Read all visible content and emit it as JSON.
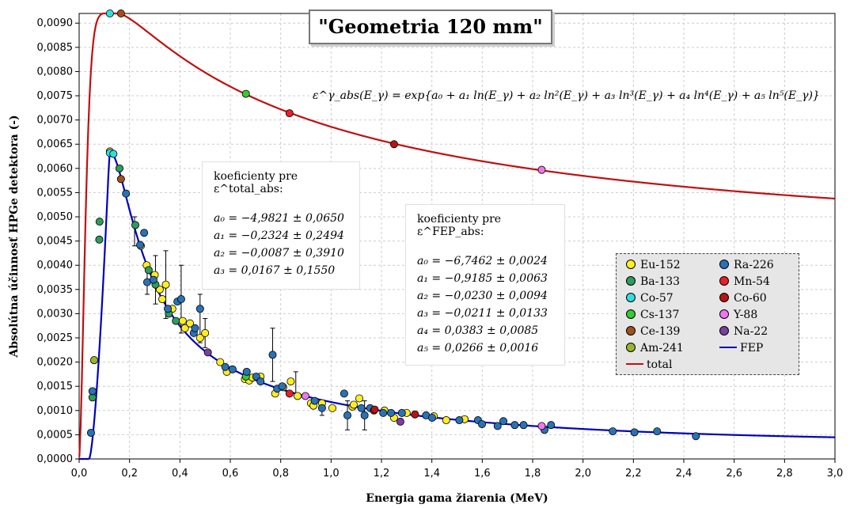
{
  "chart_data": {
    "type": "scatter",
    "title": "\"Geometria 120 mm\"",
    "xlabel": "Energia gama žiarenia (MeV)",
    "ylabel": "Absolútna účinnosť HPGe detektora (-)",
    "xlim": [
      0,
      3.0
    ],
    "ylim": [
      0,
      0.0092
    ],
    "x_ticks": [
      "0,0",
      "0,2",
      "0,4",
      "0,6",
      "0,8",
      "1,0",
      "1,2",
      "1,4",
      "1,6",
      "1,8",
      "2,0",
      "2,2",
      "2,4",
      "2,6",
      "2,8",
      "3,0"
    ],
    "y_ticks": [
      "0,0000",
      "0,0005",
      "0,0010",
      "0,0015",
      "0,0020",
      "0,0025",
      "0,0030",
      "0,0035",
      "0,0040",
      "0,0045",
      "0,0050",
      "0,0055",
      "0,0060",
      "0,0065",
      "0,0070",
      "0,0075",
      "0,0080",
      "0,0085",
      "0,0090"
    ],
    "grid": true,
    "legend_position": "right",
    "series": [
      {
        "name": "Eu-152",
        "color": "#ffee22",
        "points": [
          [
            0.122,
            0.00635
          ],
          [
            0.245,
            0.0044
          ],
          [
            0.268,
            0.004
          ],
          [
            0.3,
            0.0038
          ],
          [
            0.32,
            0.0035
          ],
          [
            0.33,
            0.0033
          ],
          [
            0.344,
            0.0036
          ],
          [
            0.37,
            0.0031
          ],
          [
            0.411,
            0.00285
          ],
          [
            0.42,
            0.0027
          ],
          [
            0.44,
            0.0028
          ],
          [
            0.48,
            0.0025
          ],
          [
            0.5,
            0.0026
          ],
          [
            0.56,
            0.002
          ],
          [
            0.586,
            0.0018
          ],
          [
            0.658,
            0.00165
          ],
          [
            0.675,
            0.00162
          ],
          [
            0.688,
            0.00168
          ],
          [
            0.72,
            0.0017
          ],
          [
            0.778,
            0.00135
          ],
          [
            0.81,
            0.00148
          ],
          [
            0.84,
            0.0016
          ],
          [
            0.867,
            0.0013
          ],
          [
            0.92,
            0.00115
          ],
          [
            0.93,
            0.0011
          ],
          [
            0.964,
            0.00115
          ],
          [
            1.005,
            0.00105
          ],
          [
            1.085,
            0.00108
          ],
          [
            1.09,
            0.00112
          ],
          [
            1.112,
            0.00125
          ],
          [
            1.212,
            0.001
          ],
          [
            1.25,
            0.00085
          ],
          [
            1.3,
            0.00095
          ],
          [
            1.408,
            0.00088
          ],
          [
            1.457,
            0.0008
          ],
          [
            1.53,
            0.00082
          ]
        ]
      },
      {
        "name": "Ba-133",
        "color": "#2e9c5e",
        "points": [
          [
            0.053,
            0.00127
          ],
          [
            0.08,
            0.00453
          ],
          [
            0.081,
            0.0049
          ],
          [
            0.16,
            0.006
          ],
          [
            0.223,
            0.00483
          ],
          [
            0.276,
            0.0039
          ],
          [
            0.303,
            0.0036
          ],
          [
            0.356,
            0.003
          ],
          [
            0.384,
            0.00285
          ]
        ]
      },
      {
        "name": "Co-57",
        "color": "#33dddd",
        "points": [
          [
            0.122,
            0.00632
          ],
          [
            0.136,
            0.0063
          ]
        ]
      },
      {
        "name": "Cs-137",
        "color": "#33cc33",
        "points": [
          [
            0.662,
            0.0017
          ]
        ]
      },
      {
        "name": "Ce-139",
        "color": "#a0501e",
        "points": [
          [
            0.166,
            0.00578
          ]
        ]
      },
      {
        "name": "Am-241",
        "color": "#9ab52a",
        "points": [
          [
            0.0595,
            0.00204
          ]
        ]
      },
      {
        "name": "Ra-226",
        "color": "#2a72b5",
        "points": [
          [
            0.047,
            0.00054
          ],
          [
            0.053,
            0.0014
          ],
          [
            0.186,
            0.00548
          ],
          [
            0.242,
            0.00442
          ],
          [
            0.258,
            0.00467
          ],
          [
            0.27,
            0.00365
          ],
          [
            0.295,
            0.0037
          ],
          [
            0.352,
            0.0031
          ],
          [
            0.39,
            0.00325
          ],
          [
            0.405,
            0.0033
          ],
          [
            0.455,
            0.0026
          ],
          [
            0.46,
            0.0027
          ],
          [
            0.48,
            0.0031
          ],
          [
            0.58,
            0.0019
          ],
          [
            0.609,
            0.00185
          ],
          [
            0.665,
            0.0018
          ],
          [
            0.703,
            0.0017
          ],
          [
            0.72,
            0.0016
          ],
          [
            0.768,
            0.00215
          ],
          [
            0.786,
            0.00145
          ],
          [
            0.806,
            0.0015
          ],
          [
            0.935,
            0.0012
          ],
          [
            0.964,
            0.00105
          ],
          [
            1.052,
            0.00135
          ],
          [
            1.065,
            0.0009
          ],
          [
            1.12,
            0.00105
          ],
          [
            1.133,
            0.0009
          ],
          [
            1.155,
            0.00105
          ],
          [
            1.207,
            0.00095
          ],
          [
            1.238,
            0.00095
          ],
          [
            1.281,
            0.00095
          ],
          [
            1.377,
            0.0009
          ],
          [
            1.401,
            0.00085
          ],
          [
            1.509,
            0.0008
          ],
          [
            1.583,
            0.0008
          ],
          [
            1.599,
            0.00072
          ],
          [
            1.661,
            0.00068
          ],
          [
            1.684,
            0.00078
          ],
          [
            1.729,
            0.0007
          ],
          [
            1.764,
            0.0007
          ],
          [
            1.847,
            0.0006
          ],
          [
            1.873,
            0.0007
          ],
          [
            2.118,
            0.00057
          ],
          [
            2.204,
            0.00055
          ],
          [
            2.294,
            0.00057
          ],
          [
            2.448,
            0.00047
          ]
        ]
      },
      {
        "name": "Mn-54",
        "color": "#e8202a",
        "points": [
          [
            0.835,
            0.00135
          ],
          [
            1.17,
            0.001
          ]
        ]
      },
      {
        "name": "Co-60",
        "color": "#b81414",
        "points": [
          [
            1.173,
            0.00102
          ],
          [
            1.333,
            0.00092
          ]
        ]
      },
      {
        "name": "Y-88",
        "color": "#ee77ee",
        "points": [
          [
            0.898,
            0.0013
          ],
          [
            1.836,
            0.00068
          ]
        ]
      },
      {
        "name": "Na-22",
        "color": "#7a3fa0",
        "points": [
          [
            0.511,
            0.0022
          ],
          [
            1.275,
            0.00077
          ]
        ]
      }
    ],
    "total_markers": [
      {
        "x": 0.122,
        "y": 0.0092,
        "color": "#33dddd"
      },
      {
        "x": 0.166,
        "y": 0.0092,
        "color": "#a0501e"
      },
      {
        "x": 0.662,
        "y": 0.00754,
        "color": "#33cc33"
      },
      {
        "x": 0.835,
        "y": 0.00714,
        "color": "#e8202a"
      },
      {
        "x": 1.25,
        "y": 0.0065,
        "color": "#b81414"
      },
      {
        "x": 1.836,
        "y": 0.00597,
        "color": "#ee77ee"
      }
    ],
    "error_bars": [
      {
        "x": 0.303,
        "y": 0.0036,
        "lo": 0.0032,
        "hi": 0.0042
      },
      {
        "x": 0.344,
        "y": 0.0036,
        "lo": 0.0029,
        "hi": 0.0043
      },
      {
        "x": 0.405,
        "y": 0.0033,
        "lo": 0.0026,
        "hi": 0.004
      },
      {
        "x": 0.48,
        "y": 0.0031,
        "lo": 0.0024,
        "hi": 0.0034
      },
      {
        "x": 0.768,
        "y": 0.00215,
        "lo": 0.0016,
        "hi": 0.0027
      },
      {
        "x": 0.86,
        "y": 0.0016,
        "lo": 0.0013,
        "hi": 0.0018
      },
      {
        "x": 1.065,
        "y": 0.0009,
        "lo": 0.0006,
        "hi": 0.0012
      },
      {
        "x": 1.133,
        "y": 0.0009,
        "lo": 0.0006,
        "hi": 0.0012
      },
      {
        "x": 0.964,
        "y": 0.00105,
        "lo": 0.0009,
        "hi": 0.0012
      },
      {
        "x": 0.5,
        "y": 0.0026,
        "lo": 0.0023,
        "hi": 0.0029
      },
      {
        "x": 0.27,
        "y": 0.00365,
        "lo": 0.0034,
        "hi": 0.0039
      },
      {
        "x": 0.22,
        "y": 0.00483,
        "lo": 0.0044,
        "hi": 0.005
      }
    ],
    "curves": [
      {
        "name": "FEP",
        "color": "#0000bb"
      },
      {
        "name": "total",
        "color": "#c01010"
      }
    ],
    "formula": "ε^γ_abs(E_γ) = exp{a₀ + a₁ ln(E_γ) + a₂ ln²(E_γ) + a₃ ln³(E_γ) + a₄ ln⁴(E_γ) + a₅ ln⁵(E_γ)}",
    "coef_total": {
      "head": "koeficienty pre ε^total_abs:",
      "lines": [
        "a₀ = −4,9821 ± 0,0650",
        "a₁ = −0,2324 ± 0,2494",
        "a₂ = −0,0087 ± 0,3910",
        "a₃ =   0,0167 ± 0,1550"
      ]
    },
    "coef_fep": {
      "head": "koeficienty pre ε^FEP_abs:",
      "lines": [
        "a₀ = −6,7462 ± 0,0024",
        "a₁ = −0,9185 ± 0,0063",
        "a₂ = −0,0230 ± 0,0094",
        "a₃ = −0,0211 ± 0,0133",
        "a₄ =   0,0383 ± 0,0085",
        "a₅ =   0,0266 ± 0,0016"
      ]
    }
  }
}
